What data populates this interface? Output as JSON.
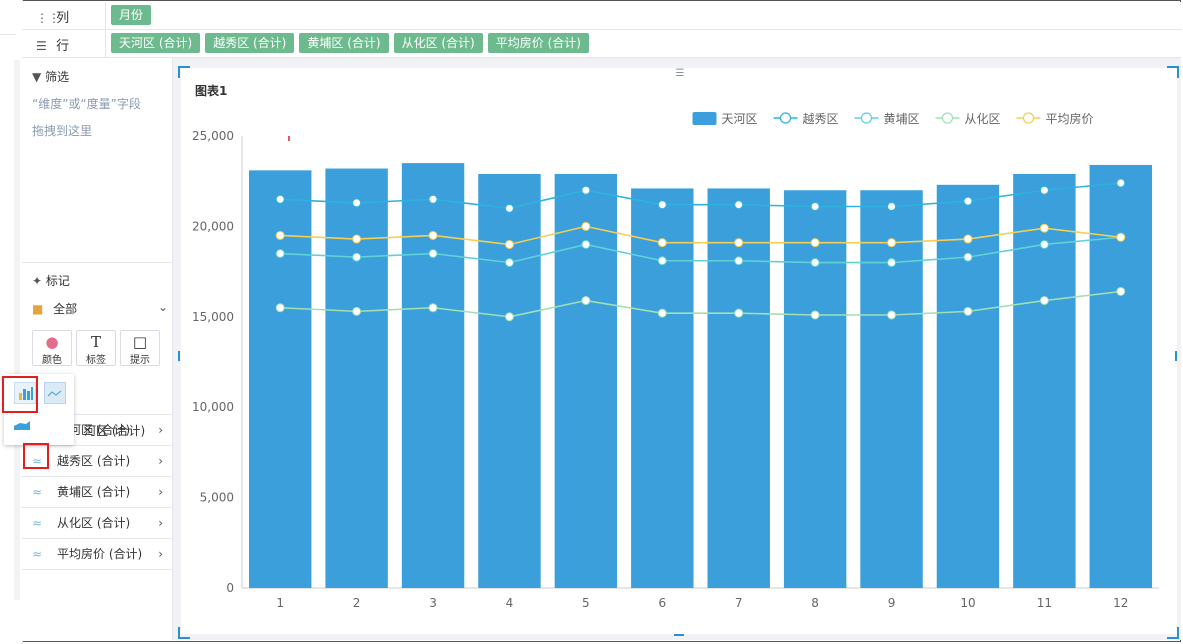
{
  "shelves": {
    "columns": {
      "label": "列",
      "pills": [
        "月份"
      ]
    },
    "rows": {
      "label": "行",
      "pills": [
        "天河区 (合计)",
        "越秀区 (合计)",
        "黄埔区 (合计)",
        "从化区 (合计)",
        "平均房价 (合计)"
      ]
    }
  },
  "filter": {
    "title": "筛选",
    "hint_line1": "“维度”或“度量”字段",
    "hint_line2": "拖拽到这里"
  },
  "marks": {
    "title": "标记",
    "all_label": "全部",
    "buttons": {
      "color": "颜色",
      "label": "标签",
      "tooltip": "提示"
    },
    "series": [
      "天河区 (合计)",
      "越秀区 (合计)",
      "黄埔区 (合计)",
      "从化区 (合计)",
      "平均房价 (合计)"
    ]
  },
  "popup_partial_text": "河区 (合计)",
  "chart_title": "图表1",
  "icons": {
    "columns": "columns-icon",
    "rows": "rows-icon",
    "filter": "filter-icon",
    "marks": "pin-icon",
    "color": "palette-icon",
    "label": "text-icon",
    "tooltip": "speech-bubble-icon",
    "bar_type": "bar-chart-icon",
    "line_type": "line-chart-icon",
    "area_type": "area-chart-icon"
  },
  "chart_data": {
    "type": "bar",
    "categories": [
      "1",
      "2",
      "3",
      "4",
      "5",
      "6",
      "7",
      "8",
      "9",
      "10",
      "11",
      "12"
    ],
    "ylim": [
      0,
      25000
    ],
    "yticks": [
      "0",
      "5,000",
      "10,000",
      "15,000",
      "20,000",
      "25,000"
    ],
    "ytick_values": [
      0,
      5000,
      10000,
      15000,
      20000,
      25000
    ],
    "legend_position": "top-center",
    "series": [
      {
        "name": "天河区",
        "kind": "bar",
        "color": "#3a9fda",
        "values": [
          23100,
          23200,
          23500,
          22900,
          22900,
          22100,
          22100,
          22000,
          22000,
          22300,
          22900,
          23400
        ]
      },
      {
        "name": "越秀区",
        "kind": "line",
        "color": "#2fb2e0",
        "values": [
          21500,
          21300,
          21500,
          21000,
          22000,
          21200,
          21200,
          21100,
          21100,
          21400,
          22000,
          22400
        ]
      },
      {
        "name": "黄埔区",
        "kind": "line",
        "color": "#5fd2d8",
        "values": [
          18500,
          18300,
          18500,
          18000,
          19000,
          18100,
          18100,
          18000,
          18000,
          18300,
          19000,
          19400
        ]
      },
      {
        "name": "从化区",
        "kind": "line",
        "color": "#9fe0b5",
        "values": [
          15500,
          15300,
          15500,
          15000,
          15900,
          15200,
          15200,
          15100,
          15100,
          15300,
          15900,
          16400
        ]
      },
      {
        "name": "平均房价",
        "kind": "line",
        "color": "#f5ce55",
        "values": [
          19500,
          19300,
          19500,
          19000,
          20000,
          19100,
          19100,
          19100,
          19100,
          19300,
          19900,
          19400
        ]
      }
    ]
  }
}
